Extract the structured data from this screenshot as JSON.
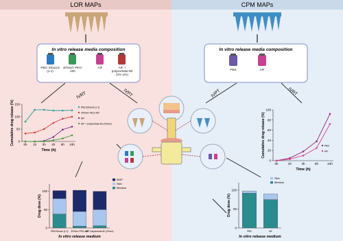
{
  "header": {
    "left": "LOR MAPs",
    "right": "CPM MAPs"
  },
  "left_media": {
    "title": "In vitro release media composition",
    "items": [
      "PBS: Ethanol (1:1)",
      "40%w/v PEG-400",
      "AIF",
      "AIF + polysorbate-80 (2% w/v)"
    ]
  },
  "right_media": {
    "title": "In vitro release media composition",
    "items": [
      "PBS",
      "AIF"
    ]
  },
  "arrows": [
    "IVRT",
    "IVPT",
    "IVPT",
    "IVRT"
  ],
  "chart_data": [
    {
      "type": "line",
      "x_label": "Time (h)",
      "y_label": "Cumulative drug release (%)",
      "categories": [
        "0h",
        "1h",
        "2h",
        "4h",
        "8h",
        "24h"
      ],
      "ylim": [
        0,
        150
      ],
      "yticks": [
        0,
        50,
        100,
        150
      ],
      "series": [
        {
          "name": "PBS:Ethanol (1:1)",
          "color": "#2a9d9a",
          "values": [
            80,
            128,
            128,
            125,
            125,
            126
          ]
        },
        {
          "name": "40%w/v PEG-400",
          "color": "#d33a3a",
          "values": [
            32,
            36,
            50,
            75,
            92,
            100
          ]
        },
        {
          "name": "AIF",
          "color": "#7a2e8e",
          "values": [
            0,
            0,
            2,
            18,
            48,
            60
          ]
        },
        {
          "name": "AIF + polysorbate-80 (2%w/v)",
          "color": "#3a9a3a",
          "values": [
            0,
            0,
            0,
            5,
            12,
            25
          ]
        }
      ]
    },
    {
      "type": "bar",
      "stacked": true,
      "x_label": "In vitro release medium",
      "y_label": "Drug dose (%)",
      "categories": [
        "PBS:Ethanol (1:1)",
        "40%w/v PEG-400",
        "AIF+polysorbate-80 (2%w/v)"
      ],
      "ylim": [
        0,
        120
      ],
      "yticks": [
        0,
        50,
        100
      ],
      "series": [
        {
          "name": "Medium",
          "color": "#2a8c8f",
          "values": [
            38,
            5,
            6
          ]
        },
        {
          "name": "Skin",
          "color": "#a9c7ee",
          "values": [
            42,
            40,
            44
          ]
        },
        {
          "name": "MAP",
          "color": "#1c2a6b",
          "values": [
            22,
            58,
            50
          ]
        }
      ]
    },
    {
      "type": "line",
      "x_label": "Time (h)",
      "y_label": "Cumulative drug release (%)",
      "categories": [
        "0h",
        "2h",
        "4h",
        "8h",
        "24h"
      ],
      "ylim": [
        0,
        100
      ],
      "yticks": [
        0,
        20,
        40,
        60,
        80,
        100
      ],
      "series": [
        {
          "name": "PBS",
          "color": "#8e2a78",
          "values": [
            0,
            5,
            18,
            38,
            92
          ]
        },
        {
          "name": "AIF",
          "color": "#d6448c",
          "values": [
            0,
            3,
            10,
            25,
            72
          ]
        }
      ]
    },
    {
      "type": "bar",
      "stacked": true,
      "x_label": "In vitro release medium",
      "y_label": "Drug dose (%)",
      "categories": [
        "PBS",
        "AIF"
      ],
      "ylim": [
        0,
        120
      ],
      "yticks": [
        0,
        50,
        100
      ],
      "series": [
        {
          "name": "Medium",
          "color": "#2a8c8f",
          "values": [
            92,
            75
          ]
        },
        {
          "name": "Skin",
          "color": "#a9c7ee",
          "values": [
            6,
            15
          ]
        }
      ]
    }
  ]
}
